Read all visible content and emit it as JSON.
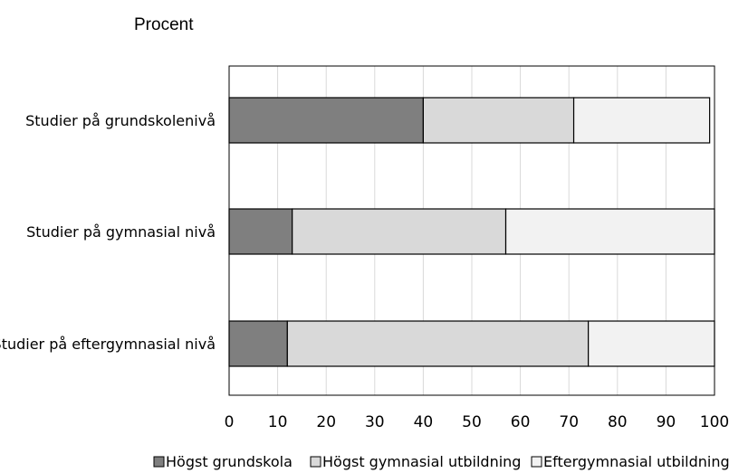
{
  "chart_data": {
    "type": "bar",
    "orientation": "horizontal",
    "stacked": true,
    "unit_label": "Procent",
    "categories": [
      "Studier på grundskolenivå",
      "Studier på gymnasial nivå",
      "Studier på eftergymnasial nivå"
    ],
    "series": [
      {
        "name": "Högst grundskola",
        "values": [
          40,
          13,
          12
        ],
        "color": "#7f7f7f"
      },
      {
        "name": "Högst gymnasial utbildning",
        "values": [
          31,
          44,
          62
        ],
        "color": "#d9d9d9"
      },
      {
        "name": "Eftergymnasial utbildning",
        "values": [
          28,
          43,
          26
        ],
        "color": "#f2f2f2"
      }
    ],
    "xlim": [
      0,
      100
    ],
    "xticks": [
      0,
      10,
      20,
      30,
      40,
      50,
      60,
      70,
      80,
      90,
      100
    ],
    "grid": "vertical",
    "legend_position": "bottom"
  }
}
